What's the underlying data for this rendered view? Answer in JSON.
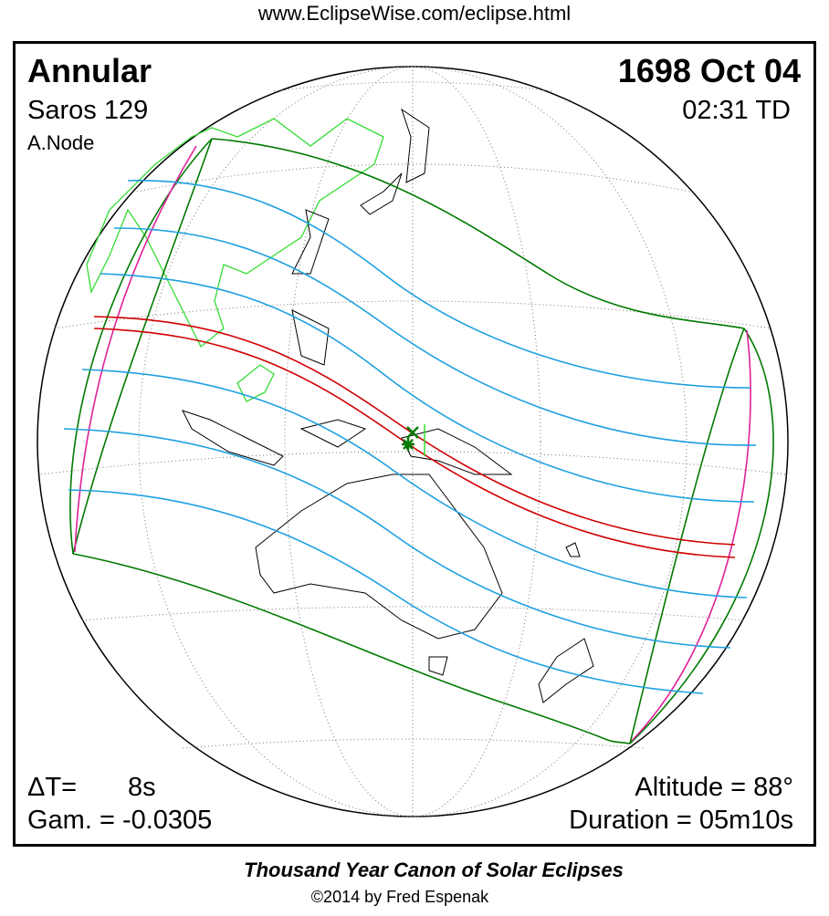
{
  "header": {
    "url": "www.EclipseWise.com/eclipse.html"
  },
  "panel": {
    "eclipse_type": "Annular",
    "saros": "Saros 129",
    "node": "A.Node",
    "date": "1698 Oct 04",
    "time": "02:31 TD",
    "delta_t_label": "ΔT=",
    "delta_t_value": "8s",
    "gamma": "Gam. = -0.0305",
    "altitude": "Altitude = 88°",
    "duration": "Duration = 05m10s"
  },
  "footer": {
    "title": "Thousand Year Canon of Solar Eclipses",
    "copyright": "©2014 by Fred Espenak"
  }
}
